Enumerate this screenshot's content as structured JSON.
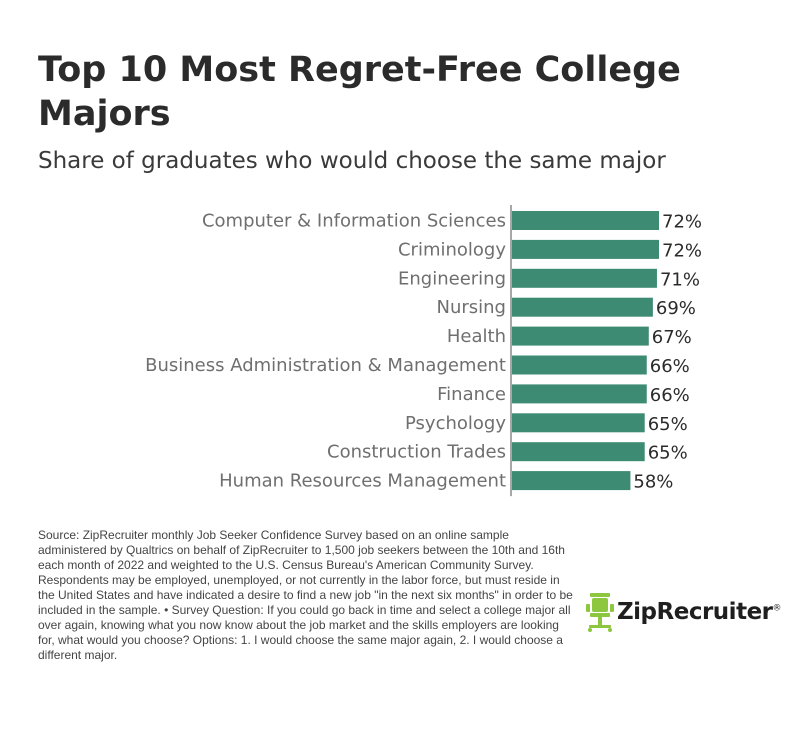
{
  "header": {
    "title": "Top 10 Most Regret-Free College Majors",
    "subtitle": "Share of graduates who would choose the same major"
  },
  "footer": {
    "source": "Source: ZipRecruiter monthly Job Seeker Confidence Survey based on an online sample administered by Qualtrics on behalf of ZipRecruiter to 1,500 job seekers between the 10th and 16th each month of 2022 and weighted to the U.S. Census Bureau's American Community Survey. Respondents may be employed, unemployed, or not currently in the labor force, but must reside in the United States and have indicated a desire to find a new job \"in the next six months\" in order to be included in the sample. • Survey Question: If you could go back in time and select a college major all over again, knowing what you now know about the job market and the skills employers are looking for, what would you choose? Options: 1. I would choose the same major again, 2. I would choose a different major.",
    "logo_text": "ZipRecruiter",
    "logo_mark": "®"
  },
  "colors": {
    "bar": "#3d8b73",
    "logo_green": "#8dc63f"
  },
  "chart_data": {
    "type": "bar",
    "orientation": "horizontal",
    "title": "Top 10 Most Regret-Free College Majors",
    "subtitle": "Share of graduates who would choose the same major",
    "categories": [
      "Computer & Information Sciences",
      "Criminology",
      "Engineering",
      "Nursing",
      "Health",
      "Business Administration & Management",
      "Finance",
      "Psychology",
      "Construction Trades",
      "Human Resources Management"
    ],
    "values": [
      72,
      72,
      71,
      69,
      67,
      66,
      66,
      65,
      65,
      58
    ],
    "value_labels": [
      "72%",
      "72%",
      "71%",
      "69%",
      "67%",
      "66%",
      "66%",
      "65%",
      "65%",
      "58%"
    ],
    "unit": "%",
    "xlim": [
      0,
      72
    ],
    "grid": false,
    "legend": "none"
  }
}
